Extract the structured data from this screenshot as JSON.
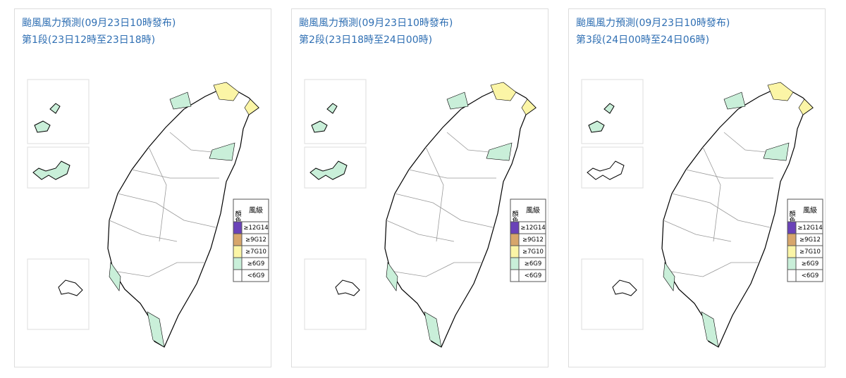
{
  "panels": [
    {
      "title": "颱風風力預測(09月23日10時發布)",
      "subtitle": "第1段(23日12時至23日18時)"
    },
    {
      "title": "颱風風力預測(09月23日10時發布)",
      "subtitle": "第2段(23日18時至24日00時)"
    },
    {
      "title": "颱風風力預測(09月23日10時發布)",
      "subtitle": "第3段(24日00時至24日06時)"
    }
  ],
  "legend": {
    "color_header": "顏色",
    "level_header": "風級",
    "rows": [
      {
        "label": "≥12G14",
        "color": "#6a42b8"
      },
      {
        "label": "≥9G12",
        "color": "#d7a66b"
      },
      {
        "label": "≥7G10",
        "color": "#fbf5a6"
      },
      {
        "label": "≥6G9",
        "color": "#c9efd9"
      },
      {
        "label": "<6G9",
        "color": "#ffffff"
      }
    ]
  }
}
